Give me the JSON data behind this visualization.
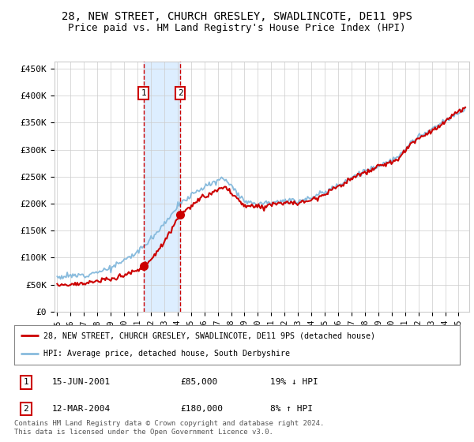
{
  "title": "28, NEW STREET, CHURCH GRESLEY, SWADLINCOTE, DE11 9PS",
  "subtitle": "Price paid vs. HM Land Registry's House Price Index (HPI)",
  "title_fontsize": 10,
  "subtitle_fontsize": 9,
  "ylim": [
    0,
    462500
  ],
  "yticks": [
    0,
    50000,
    100000,
    150000,
    200000,
    250000,
    300000,
    350000,
    400000,
    450000
  ],
  "ytick_labels": [
    "£0",
    "£50K",
    "£100K",
    "£150K",
    "£200K",
    "£250K",
    "£300K",
    "£350K",
    "£400K",
    "£450K"
  ],
  "xlim_start": 1994.8,
  "xlim_end": 2025.8,
  "red_line_color": "#cc0000",
  "blue_line_color": "#88bbdd",
  "shade_color": "#ddeeff",
  "transaction1_x": 2001.45,
  "transaction1_y": 85000,
  "transaction2_x": 2004.2,
  "transaction2_y": 180000,
  "transaction1_label": "1",
  "transaction2_label": "2",
  "legend_line1": "28, NEW STREET, CHURCH GRESLEY, SWADLINCOTE, DE11 9PS (detached house)",
  "legend_line2": "HPI: Average price, detached house, South Derbyshire",
  "table_row1": [
    "1",
    "15-JUN-2001",
    "£85,000",
    "19% ↓ HPI"
  ],
  "table_row2": [
    "2",
    "12-MAR-2004",
    "£180,000",
    "8% ↑ HPI"
  ],
  "footnote1": "Contains HM Land Registry data © Crown copyright and database right 2024.",
  "footnote2": "This data is licensed under the Open Government Licence v3.0.",
  "background_color": "#ffffff",
  "grid_color": "#cccccc"
}
